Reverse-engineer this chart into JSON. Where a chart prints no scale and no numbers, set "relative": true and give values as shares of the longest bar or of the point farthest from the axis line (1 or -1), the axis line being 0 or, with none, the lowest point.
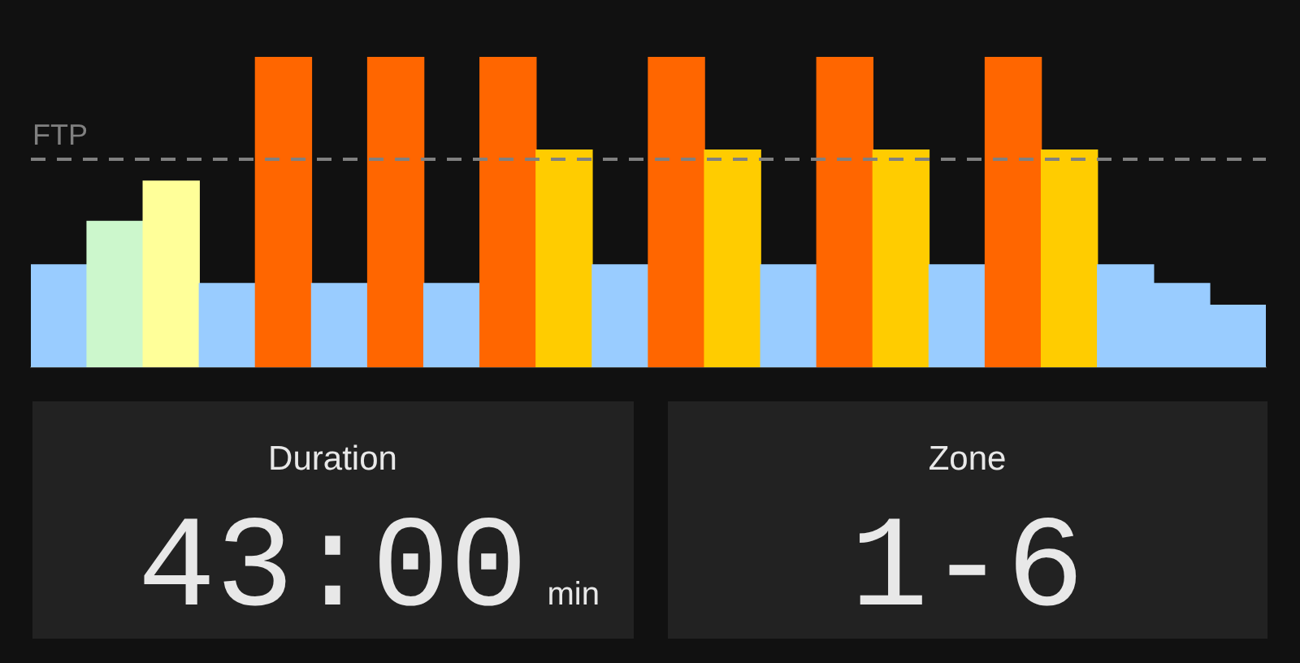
{
  "chart_data": [
    {
      "type": "bar",
      "relative": true,
      "categories": [
        null,
        null,
        null,
        null,
        null,
        null,
        null,
        null,
        null,
        null,
        null,
        null,
        null,
        null,
        null,
        null,
        null,
        null,
        null,
        null,
        null,
        null
      ],
      "values": [
        0.33,
        0.47,
        0.6,
        0.27,
        1,
        0.27,
        1,
        0.27,
        1,
        0.7,
        0.33,
        1,
        0.7,
        0.33,
        1,
        0.7,
        0.33,
        1,
        0.7,
        0.33,
        0.27,
        0.2
      ],
      "colors": [
        "#99ccff",
        "#ccf7cc",
        "#ffff99",
        "#99ccff",
        "#ff6600",
        "#99ccff",
        "#ff6600",
        "#99ccff",
        "#ff6600",
        "#ffcc00",
        "#99ccff",
        "#ff6600",
        "#ffcc00",
        "#99ccff",
        "#ff6600",
        "#ffcc00",
        "#99ccff",
        "#ff6600",
        "#ffcc00",
        "#99ccff",
        "#99ccff",
        "#99ccff"
      ],
      "ref_lines": [
        {
          "axis": "y",
          "value": 0.67,
          "label": "FTP",
          "color": "#808080",
          "line_style": "dashed"
        }
      ]
    },
    {
      "type": "other",
      "title": "Duration",
      "annotations": [
        "43:00",
        "min"
      ]
    },
    {
      "type": "other",
      "title": "Zone",
      "annotations": [
        "1-6"
      ]
    }
  ]
}
